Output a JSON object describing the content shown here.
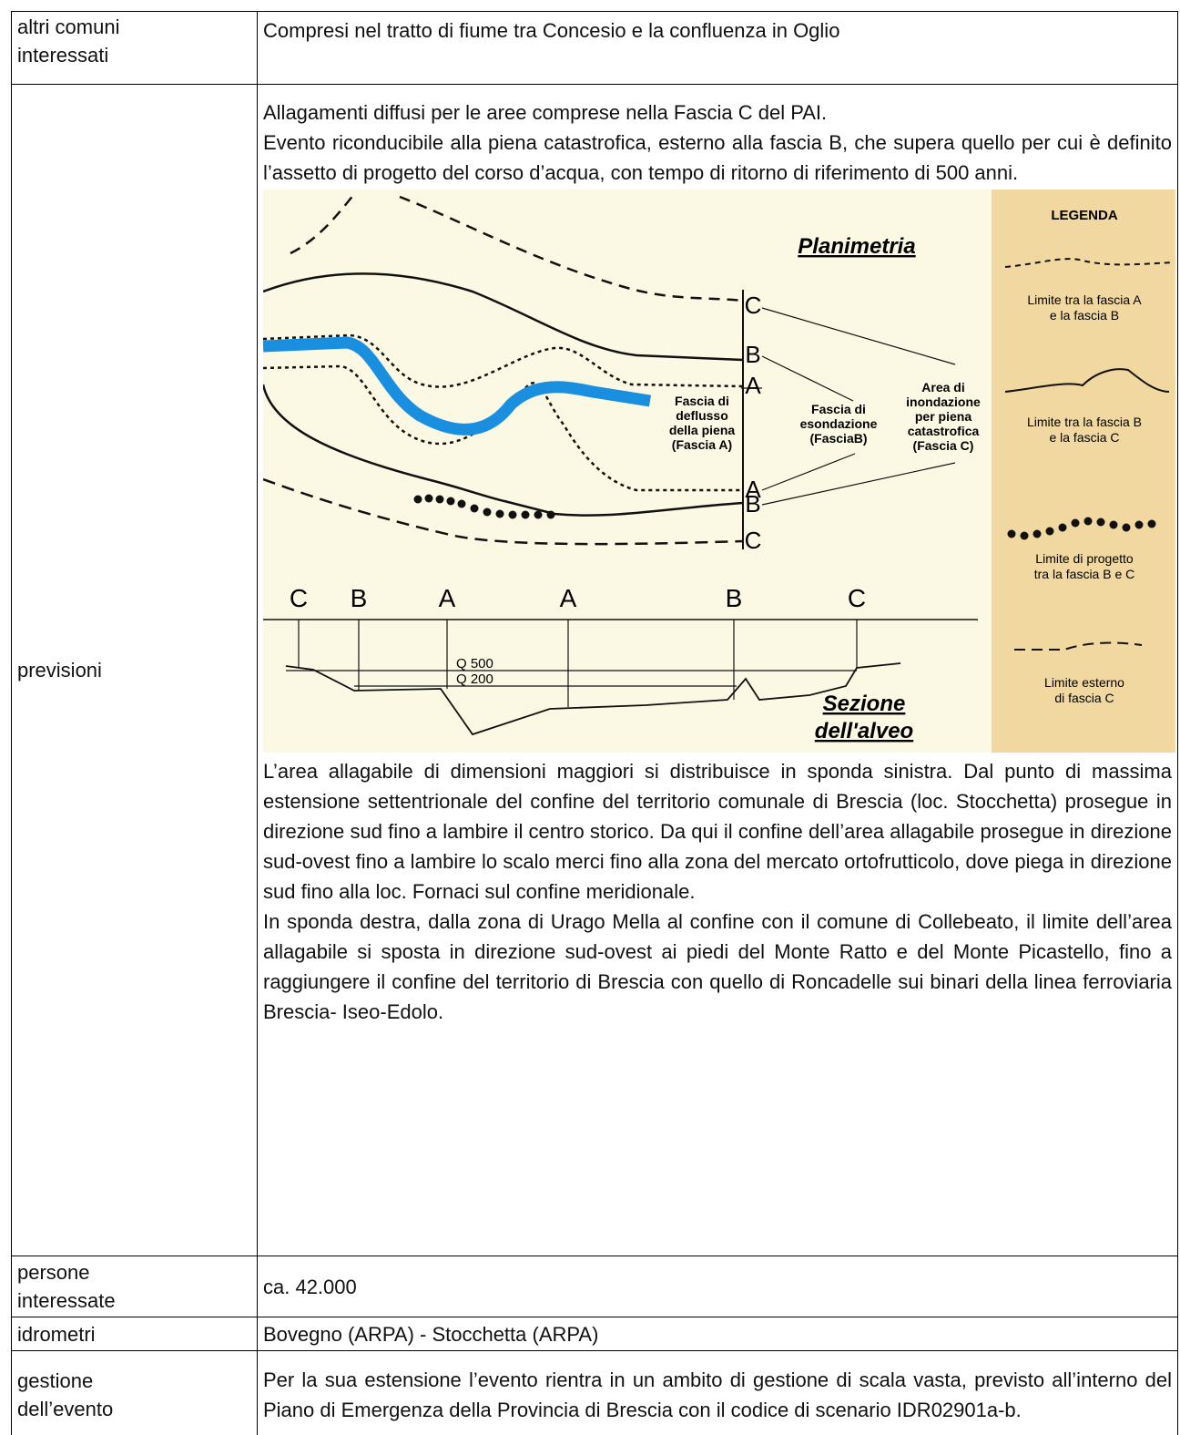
{
  "table": {
    "rows": [
      {
        "label": [
          "altri comuni",
          "interessati"
        ],
        "text": "Compresi nel tratto di fiume tra Concesio e la confluenza in Oglio"
      },
      {
        "label": [
          "previsioni"
        ],
        "intro": [
          "Allagamenti diffusi per le aree comprese nella Fascia C del PAI.",
          "Evento riconducibile alla piena catastrofica, esterno alla fascia B, che supera quello per cui è definito l’assetto di progetto del corso d’acqua, con tempo di ritorno di riferimento di 500 anni."
        ],
        "figure": {
          "title": "Planimetria",
          "plan_labels": [
            "C",
            "B",
            "A",
            "A",
            "B",
            "C"
          ],
          "zones": [
            [
              "Fascia di",
              "deflusso",
              "della piena",
              "(Fascia A)"
            ],
            [
              "Fascia di",
              "esondazione",
              "(FasciaB)"
            ],
            [
              "Area di",
              "inondazione",
              "per piena",
              "catastrofica",
              "(Fascia C)"
            ]
          ],
          "section_labels": [
            "C",
            "B",
            "A",
            "A",
            "B",
            "C"
          ],
          "flow_labels": [
            "Q 500",
            "Q 200"
          ],
          "section_title": [
            "Sezione",
            "dell'alveo"
          ],
          "legend_title": "LEGENDA",
          "legend": [
            [
              "Limite tra la fascia A",
              "e la fascia B"
            ],
            [
              "Limite tra la fascia B",
              "e la fascia C"
            ],
            [
              "Limite di progetto",
              "tra la fascia B e C"
            ],
            [
              "Limite esterno",
              "di fascia C"
            ]
          ]
        },
        "paragraphs": [
          "L’area allagabile di dimensioni maggiori si distribuisce in sponda sinistra. Dal punto di massima estensione settentrionale del confine del territorio comunale di Brescia (loc. Stocchetta) prosegue in direzione sud fino a lambire il centro storico. Da qui il confine dell’area allagabile prosegue in direzione sud-ovest fino a lambire lo scalo merci fino alla zona del mercato ortofrutticolo, dove piega in direzione sud fino alla loc. Fornaci sul confine meridionale.",
          "In sponda destra, dalla zona di Urago Mella al confine con il comune di Collebeato, il limite dell’area allagabile si sposta in direzione sud-ovest ai piedi del Monte Ratto e del Monte Picastello, fino a raggiungere il confine del territorio di Brescia con quello di Roncadelle sui binari della linea ferroviaria Brescia- Iseo-Edolo."
        ]
      },
      {
        "label": [
          "persone",
          "interessate"
        ],
        "text": "ca. 42.000"
      },
      {
        "label": [
          "idrometri"
        ],
        "text": "Bovegno (ARPA) - Stocchetta (ARPA)"
      },
      {
        "label": [
          "gestione",
          "dell’evento"
        ],
        "text": "Per la sua estensione l’evento rientra in un ambito di gestione di scala vasta, previsto all’interno del Piano di Emergenza della Provincia di Brescia con il codice di scenario IDR02901a-b."
      }
    ]
  }
}
